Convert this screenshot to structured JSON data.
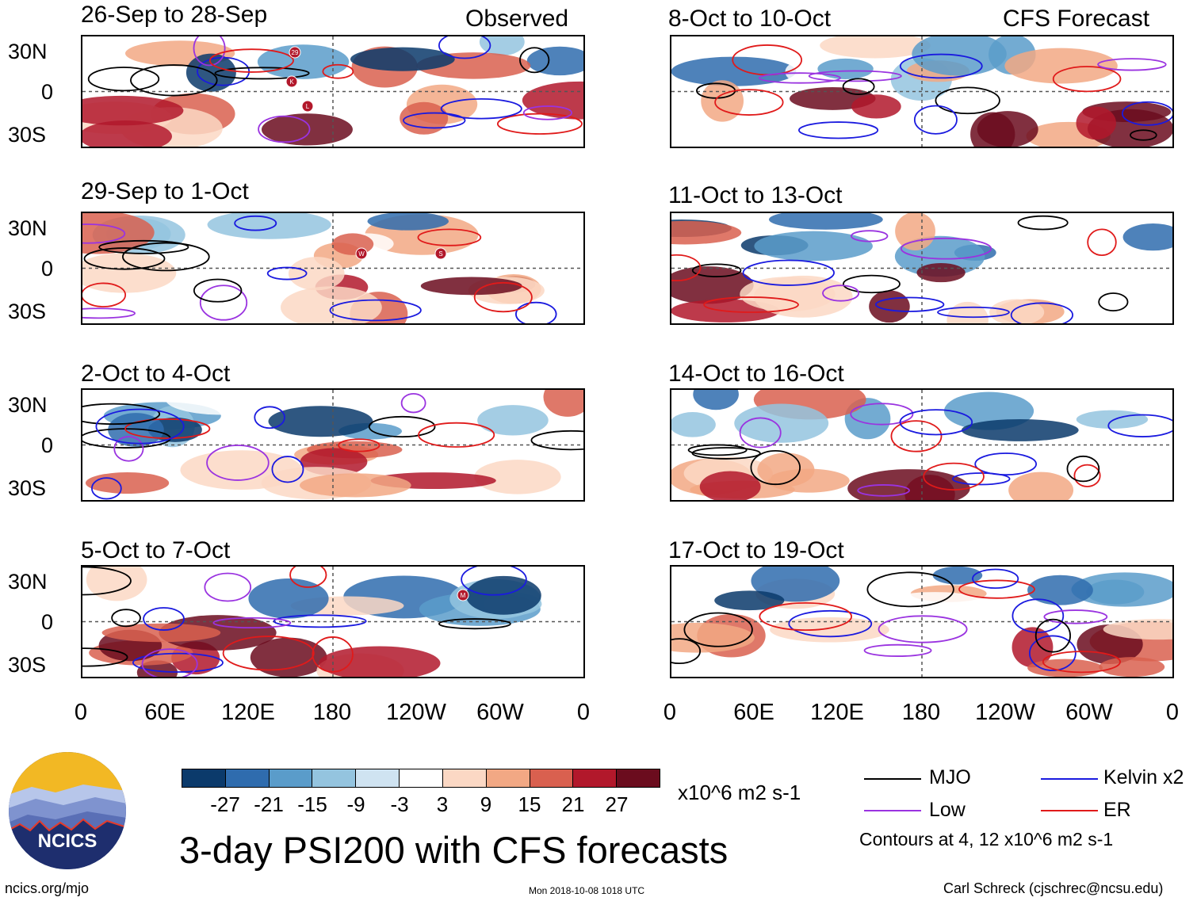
{
  "colors": {
    "scale": [
      "#0b3a6b",
      "#2f6cae",
      "#5a9cca",
      "#94c4df",
      "#cfe3f1",
      "#ffffff",
      "#fbd8c4",
      "#f2a884",
      "#d9604f",
      "#b2182b",
      "#6b0c1e"
    ],
    "mjo": "#000000",
    "kelvin": "#1a1adf",
    "low": "#9a33e0",
    "er": "#e01a1a"
  },
  "observed_panels": [
    {
      "label": "26-Sep to 28-Sep",
      "header": "Observed"
    },
    {
      "label": "29-Sep to 1-Oct",
      "header": ""
    },
    {
      "label": "2-Oct to 4-Oct",
      "header": ""
    },
    {
      "label": "5-Oct to 7-Oct",
      "header": ""
    }
  ],
  "forecast_panels": [
    {
      "label": "8-Oct to 10-Oct",
      "header": "CFS Forecast"
    },
    {
      "label": "11-Oct to 13-Oct",
      "header": ""
    },
    {
      "label": "14-Oct to 16-Oct",
      "header": ""
    },
    {
      "label": "17-Oct to 19-Oct",
      "header": ""
    }
  ],
  "lat_labels": [
    "30N",
    "0",
    "30S"
  ],
  "lon_labels": [
    "0",
    "60E",
    "120E",
    "180",
    "120W",
    "60W",
    "0"
  ],
  "storm_markers": [
    {
      "panel": 0,
      "label": "29"
    },
    {
      "panel": 0,
      "label": "K"
    },
    {
      "panel": 0,
      "label": "L"
    },
    {
      "panel": 1,
      "label": "W"
    },
    {
      "panel": 1,
      "label": "S"
    },
    {
      "panel": 3,
      "label": "M"
    }
  ],
  "colorbar_ticks": [
    "-27",
    "-21",
    "-15",
    "-9",
    "-3",
    "3",
    "9",
    "15",
    "21",
    "27"
  ],
  "units": "x10^6 m2 s-1",
  "title": "3-day PSI200 with CFS forecasts",
  "legend": {
    "mjo": "MJO",
    "kelvin": "Kelvin x2",
    "low": "Low",
    "er": "ER",
    "contours": "Contours at 4, 12 x10^6 m2 s-1"
  },
  "logo_text": "NCICS",
  "footer": {
    "url": "ncics.org/mjo",
    "timestamp": "Mon 2018-10-08 1018 UTC",
    "author": "Carl Schreck (cjschrec@ncsu.edu)"
  }
}
